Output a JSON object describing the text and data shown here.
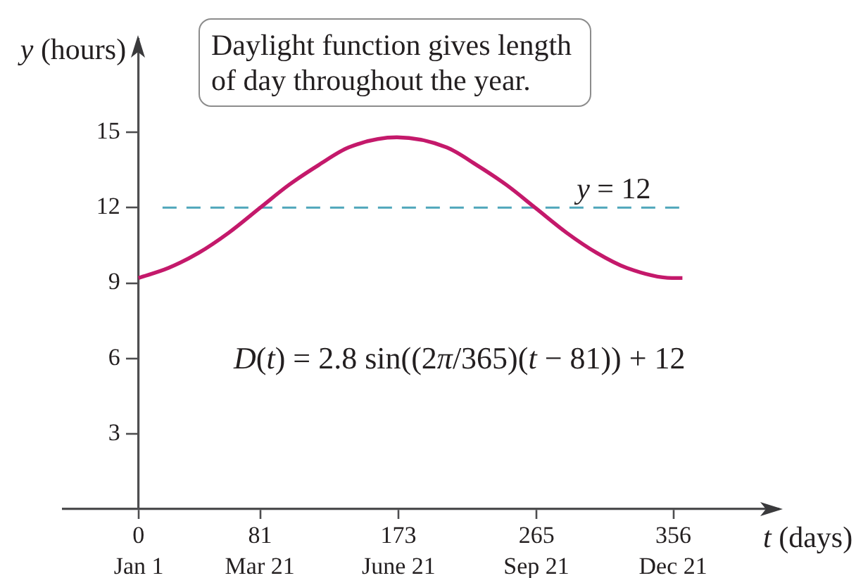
{
  "chart_data": {
    "type": "line",
    "xlabel": "t (days)",
    "ylabel": "y (hours)",
    "annotations": [
      "Daylight function gives length of day throughout the year.",
      "D(t) = 2.8 sin((2π/365)(t − 81)) + 12",
      "Jan 1",
      "Mar 21",
      "June 21",
      "Sep 21",
      "Dec 21"
    ],
    "xlim": [
      -50,
      426
    ],
    "ylim": [
      0,
      18.7
    ],
    "xticks": [
      0,
      81,
      173,
      265,
      356
    ],
    "yticks": [
      3,
      6,
      9,
      12,
      15
    ],
    "series": [
      {
        "color": "#c4196b",
        "line_style": "solid",
        "x": [
          0,
          20,
          40,
          60,
          81,
          100,
          120,
          140,
          172,
          205,
          225,
          245,
          264,
          285,
          305,
          325,
          355,
          362
        ],
        "values": [
          9.2,
          9.6,
          10.2,
          11.0,
          12.0,
          12.9,
          13.7,
          14.4,
          14.8,
          14.4,
          13.7,
          12.9,
          12.0,
          11.0,
          10.2,
          9.6,
          9.2,
          9.2
        ]
      },
      {
        "name": "y = 12",
        "color": "#4fa6bb",
        "line_style": "dashed",
        "x": [
          16,
          360
        ],
        "values": [
          12,
          12
        ]
      }
    ],
    "marker": "none",
    "legend": false,
    "grid": false
  }
}
